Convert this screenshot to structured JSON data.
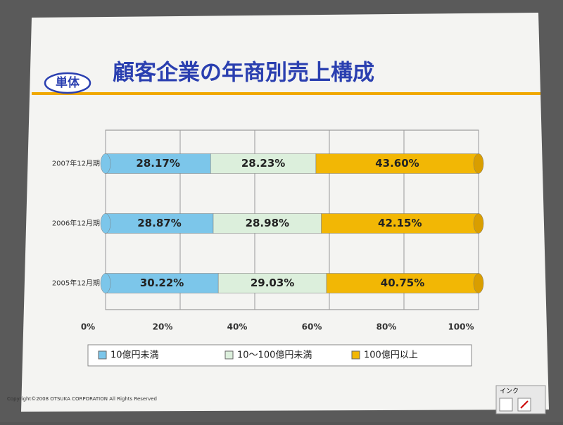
{
  "slide": {
    "badge": "単体",
    "copyright": "Copyright©2008 OTSUKA CORPORATION All Rights Reserved",
    "toolbar": "インク"
  },
  "chart_data": {
    "type": "bar",
    "orientation": "horizontal",
    "stacked": true,
    "title": "顧客企業の年商別売上構成",
    "categories": [
      "2007年12月期",
      "2006年12月期",
      "2005年12月期"
    ],
    "series": [
      {
        "name": "10億円未満",
        "color": "#7cc6ea",
        "values": [
          28.17,
          28.87,
          30.22
        ],
        "value_labels": [
          "28.17%",
          "28.87%",
          "30.22%"
        ]
      },
      {
        "name": "10～100億円未満",
        "color": "#dcefdc",
        "values": [
          28.23,
          28.98,
          29.03
        ],
        "value_labels": [
          "28.23%",
          "28.98%",
          "29.03%"
        ]
      },
      {
        "name": "100億円以上",
        "color": "#f2b705",
        "values": [
          43.6,
          42.15,
          40.75
        ],
        "value_labels": [
          "43.60%",
          "42.15%",
          "40.75%"
        ]
      }
    ],
    "xlim": [
      0,
      100
    ],
    "xticks": [
      {
        "value": 0,
        "label": "0%"
      },
      {
        "value": 20,
        "label": "20%"
      },
      {
        "value": 40,
        "label": "40%"
      },
      {
        "value": 60,
        "label": "60%"
      },
      {
        "value": 80,
        "label": "80%"
      },
      {
        "value": 100,
        "label": "100%"
      }
    ],
    "grid": true,
    "legend": "bottom"
  }
}
